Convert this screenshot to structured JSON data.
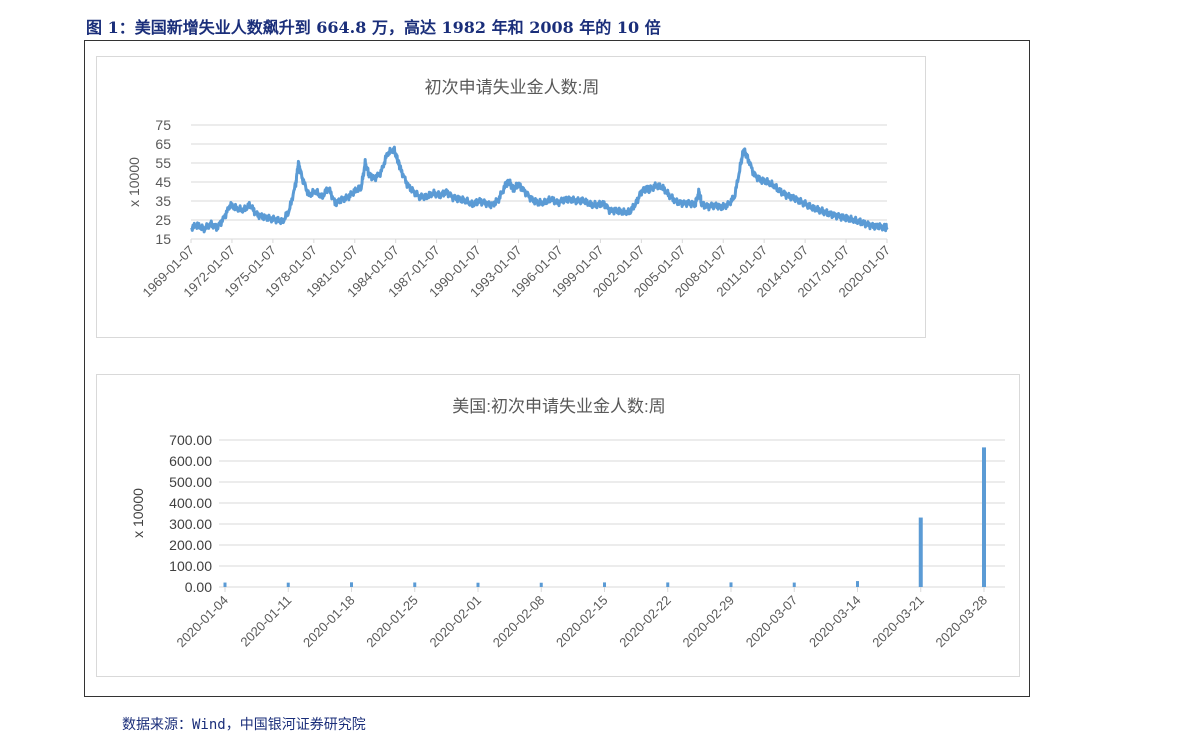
{
  "figure_title": "图 1：美国新增失业人数飙升到 664.8 万，高达 1982 年和 2008 年的 10 倍",
  "source_note": "数据来源：Wind，中国银河证券研究院",
  "colors": {
    "series": "#5b9bd5",
    "grid": "#d9d9d9",
    "text": "#595959",
    "title_text": "#1a2e7a"
  },
  "chart_data": [
    {
      "type": "line",
      "title": "初次申请失业金人数:周",
      "ylabel": "x 10000",
      "xlabel": "",
      "ylim": [
        15,
        75
      ],
      "yticks": [
        15,
        25,
        35,
        45,
        55,
        65,
        75
      ],
      "xticks": [
        "1969-01-07",
        "1972-01-07",
        "1975-01-07",
        "1978-01-07",
        "1981-01-07",
        "1984-01-07",
        "1987-01-07",
        "1990-01-07",
        "1993-01-07",
        "1996-01-07",
        "1999-01-07",
        "2002-01-07",
        "2005-01-07",
        "2008-01-07",
        "2011-01-07",
        "2014-01-07",
        "2017-01-07",
        "2020-01-07"
      ],
      "grid": true,
      "legend": "none",
      "series": [
        {
          "x": [
            1967.0,
            1967.5,
            1968.0,
            1968.5,
            1969.0,
            1969.5,
            1970.0,
            1970.5,
            1971.0,
            1971.5,
            1972.0,
            1972.5,
            1973.0,
            1973.5,
            1974.0,
            1974.5,
            1975.0,
            1975.2,
            1975.5,
            1976.0,
            1976.5,
            1977.0,
            1977.5,
            1978.0,
            1978.5,
            1979.0,
            1979.5,
            1980.0,
            1980.3,
            1980.6,
            1981.0,
            1981.5,
            1982.0,
            1982.5,
            1982.8,
            1983.0,
            1983.5,
            1984.0,
            1984.5,
            1985.0,
            1985.5,
            1986.0,
            1986.5,
            1987.0,
            1987.5,
            1988.0,
            1988.5,
            1989.0,
            1989.5,
            1990.0,
            1990.5,
            1991.0,
            1991.3,
            1991.6,
            1992.0,
            1992.5,
            1993.0,
            1993.5,
            1994.0,
            1994.5,
            1995.0,
            1995.5,
            1996.0,
            1996.5,
            1997.0,
            1997.5,
            1998.0,
            1998.5,
            1999.0,
            1999.5,
            2000.0,
            2000.5,
            2001.0,
            2001.4,
            2001.8,
            2002.0,
            2002.5,
            2003.0,
            2003.5,
            2004.0,
            2004.5,
            2005.0,
            2005.5,
            2005.8,
            2006.0,
            2006.5,
            2007.0,
            2007.5,
            2008.0,
            2008.5,
            2009.0,
            2009.2,
            2009.5,
            2010.0,
            2010.5,
            2011.0,
            2011.5,
            2012.0,
            2012.5,
            2013.0,
            2013.5,
            2014.0,
            2014.5,
            2015.0,
            2015.5,
            2016.0,
            2016.5,
            2017.0,
            2017.5,
            2018.0,
            2018.5,
            2019.0,
            2019.5,
            2020.0,
            2020.15
          ],
          "values": [
            21,
            22,
            20,
            23,
            21,
            26,
            33,
            31,
            30,
            33,
            28,
            27,
            26,
            25,
            24,
            30,
            44,
            55,
            47,
            38,
            40,
            37,
            42,
            34,
            36,
            37,
            40,
            42,
            55,
            49,
            47,
            50,
            60,
            62,
            56,
            52,
            44,
            40,
            37,
            37,
            39,
            38,
            40,
            37,
            36,
            35,
            33,
            35,
            34,
            33,
            36,
            43,
            45,
            41,
            44,
            40,
            36,
            34,
            34,
            36,
            34,
            36,
            36,
            35,
            35,
            33,
            33,
            34,
            30,
            30,
            29,
            29,
            34,
            40,
            42,
            41,
            43,
            42,
            38,
            35,
            34,
            34,
            33,
            40,
            33,
            32,
            33,
            32,
            33,
            37,
            55,
            62,
            58,
            49,
            46,
            45,
            43,
            40,
            38,
            37,
            35,
            33,
            31,
            30,
            29,
            28,
            27,
            26,
            25,
            24,
            23,
            22,
            22,
            21,
            21
          ]
        }
      ]
    },
    {
      "type": "bar",
      "title": "美国:初次申请失业金人数:周",
      "ylabel": "x 10000",
      "xlabel": "",
      "ylim": [
        0,
        700
      ],
      "yticks": [
        "0.00",
        "100.00",
        "200.00",
        "300.00",
        "400.00",
        "500.00",
        "600.00",
        "700.00"
      ],
      "yticks_values": [
        0,
        100,
        200,
        300,
        400,
        500,
        600,
        700
      ],
      "grid": true,
      "legend": "none",
      "categories": [
        "2020-01-04",
        "2020-01-11",
        "2020-01-18",
        "2020-01-25",
        "2020-02-01",
        "2020-02-08",
        "2020-02-15",
        "2020-02-22",
        "2020-02-29",
        "2020-03-07",
        "2020-03-14",
        "2020-03-21",
        "2020-03-28"
      ],
      "values": [
        21.2,
        20.7,
        22.3,
        21.6,
        20.4,
        20.3,
        21.9,
        21.7,
        21.9,
        21.1,
        28.2,
        330.7,
        664.8
      ]
    }
  ]
}
